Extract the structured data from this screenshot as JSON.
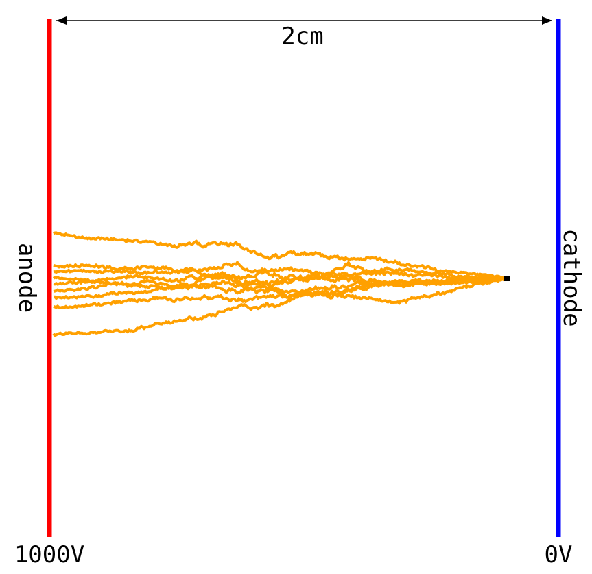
{
  "dimension": {
    "label": "2cm"
  },
  "electrodes": [
    {
      "label": "anode",
      "voltage": "1000V"
    },
    {
      "label": "cathode",
      "voltage": "0V"
    }
  ]
}
